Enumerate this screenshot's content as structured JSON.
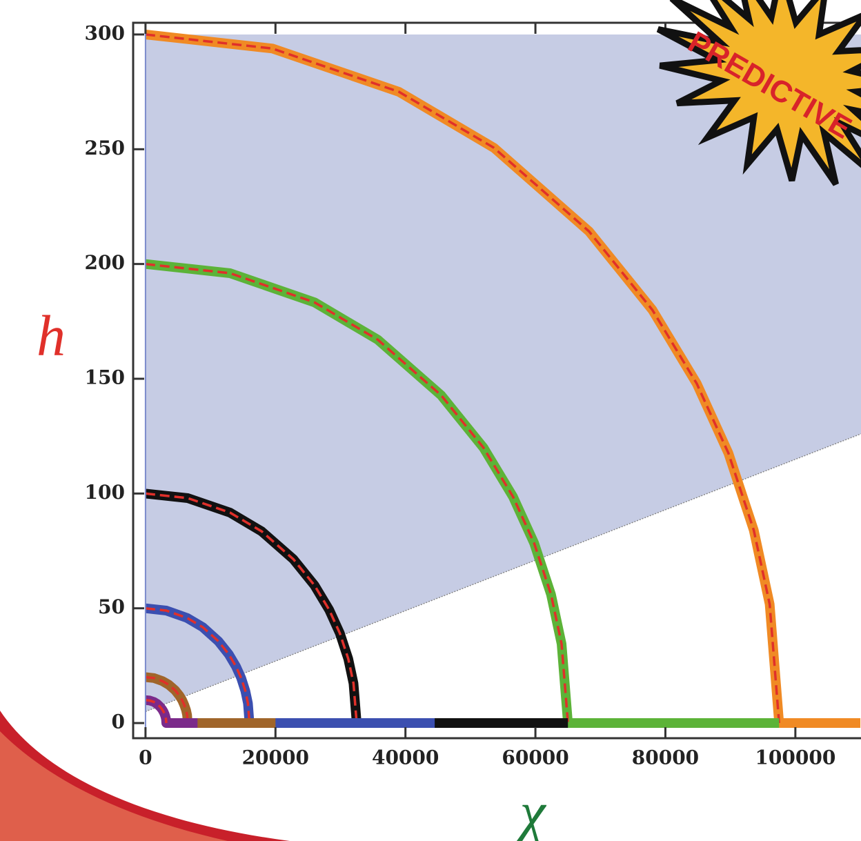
{
  "chart_data": {
    "type": "line",
    "xlabel": "χ",
    "ylabel": "h",
    "xlabel_color": "#1f7a3a",
    "ylabel_color": "#e0302a",
    "annotation": "PREDICTIVE",
    "xlim": [
      -1900,
      110100
    ],
    "ylim": [
      -6.6,
      305.1
    ],
    "xticks": [
      0,
      20000,
      40000,
      60000,
      80000,
      100000
    ],
    "yticks": [
      0,
      50,
      100,
      150,
      200,
      250,
      300
    ],
    "shaded_region": {
      "color": "#c6cce4",
      "x": [
        0,
        110100
      ],
      "lower": [
        5,
        126
      ],
      "upper": [
        300,
        300
      ]
    },
    "overlay_color": "#e0302a",
    "series": [
      {
        "color": "#f08a24",
        "x": [
          0,
          19500,
          39000,
          53625,
          68250,
          78000,
          84825,
          89700,
          93600,
          96040,
          97500,
          110000
        ],
        "values": [
          300,
          293.9,
          275,
          250.6,
          214.2,
          180,
          147.9,
          117.6,
          84,
          51.8,
          0,
          0
        ]
      },
      {
        "color": "#5cb338",
        "x": [
          0,
          13000,
          26000,
          35750,
          45500,
          52000,
          56550,
          59800,
          62400,
          64025,
          65000,
          97500
        ],
        "values": [
          200,
          196,
          183.3,
          167,
          142.8,
          120,
          98.6,
          78.4,
          56,
          34.5,
          0,
          0
        ]
      },
      {
        "color": "#111111",
        "x": [
          0,
          6500,
          13000,
          17875,
          22750,
          26000,
          28275,
          29900,
          31200,
          32012,
          32500,
          65000
        ],
        "values": [
          100,
          98,
          91.7,
          83.5,
          71.4,
          60,
          49.3,
          39.2,
          28,
          17.3,
          0,
          0
        ]
      },
      {
        "color": "#3b4fb0",
        "x": [
          0,
          3200,
          6400,
          8800,
          11200,
          12800,
          13920,
          14720,
          15360,
          15760,
          16000,
          44500
        ],
        "values": [
          50,
          49,
          45.8,
          41.8,
          35.7,
          30,
          24.7,
          19.6,
          14,
          8.6,
          0,
          0
        ]
      },
      {
        "color": "#a0652a",
        "x": [
          0,
          1300,
          2600,
          3575,
          4550,
          5200,
          5655,
          5980,
          6240,
          6402,
          6500,
          20000
        ],
        "values": [
          20,
          19.6,
          18.3,
          16.7,
          14.3,
          12,
          9.9,
          7.8,
          5.6,
          3.5,
          0,
          0
        ]
      },
      {
        "color": "#7b2a8a",
        "x": [
          0,
          640,
          1280,
          1760,
          2240,
          2560,
          2784,
          2944,
          3072,
          3152,
          3200,
          8000
        ],
        "values": [
          10,
          9.8,
          9.2,
          8.4,
          7.1,
          6,
          4.9,
          3.9,
          2.8,
          1.7,
          0,
          0
        ]
      }
    ]
  }
}
